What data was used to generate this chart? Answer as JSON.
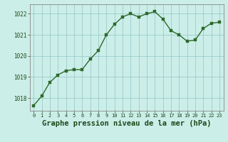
{
  "x": [
    0,
    1,
    2,
    3,
    4,
    5,
    6,
    7,
    8,
    9,
    10,
    11,
    12,
    13,
    14,
    15,
    16,
    17,
    18,
    19,
    20,
    21,
    22,
    23
  ],
  "y": [
    1017.65,
    1018.1,
    1018.75,
    1019.1,
    1019.3,
    1019.35,
    1019.35,
    1019.85,
    1020.25,
    1021.0,
    1021.5,
    1021.85,
    1022.0,
    1021.85,
    1022.0,
    1022.1,
    1021.75,
    1021.2,
    1021.0,
    1020.7,
    1020.75,
    1021.3,
    1021.55,
    1021.6
  ],
  "line_color": "#2d6a2d",
  "marker_color": "#2d6a2d",
  "bg_color": "#cceee8",
  "plot_bg_color": "#cceee8",
  "grid_color": "#99cccc",
  "title": "Graphe pression niveau de la mer (hPa)",
  "ylim": [
    1017.4,
    1022.45
  ],
  "yticks": [
    1018,
    1019,
    1020,
    1021,
    1022
  ],
  "xticks": [
    0,
    1,
    2,
    3,
    4,
    5,
    6,
    7,
    8,
    9,
    10,
    11,
    12,
    13,
    14,
    15,
    16,
    17,
    18,
    19,
    20,
    21,
    22,
    23
  ],
  "title_fontsize": 7.5,
  "title_fontweight": "bold"
}
